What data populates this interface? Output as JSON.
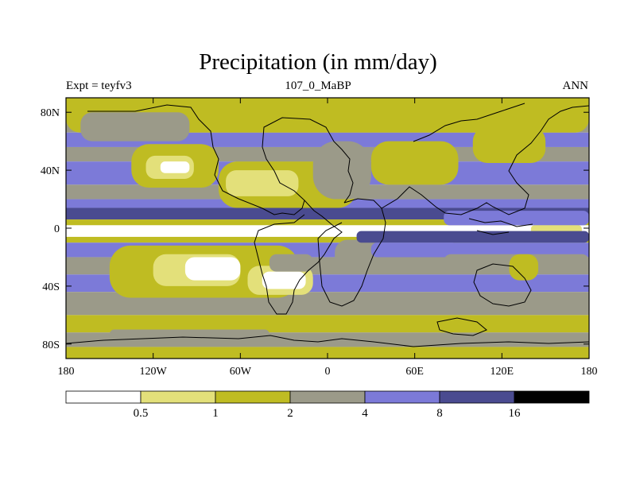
{
  "chart_data": {
    "type": "heatmap",
    "title": "Precipitation (in mm/day)",
    "subtitle_left": "Expt = teyfv3",
    "subtitle_center": "107_0_MaBP",
    "subtitle_right": "ANN",
    "x_ticks": [
      "180",
      "120W",
      "60W",
      "0",
      "60E",
      "120E",
      "180"
    ],
    "x_tick_values": [
      -180,
      -120,
      -60,
      0,
      60,
      120,
      180
    ],
    "y_ticks": [
      "80N",
      "40N",
      "0",
      "40S",
      "80S"
    ],
    "y_tick_values": [
      80,
      40,
      0,
      -40,
      -80
    ],
    "xlim": [
      -180,
      180
    ],
    "ylim": [
      -90,
      90
    ],
    "colorbar": {
      "labels": [
        "0.5",
        "1",
        "2",
        "4",
        "8",
        "16"
      ],
      "levels": [
        0.5,
        1,
        2,
        4,
        8,
        16
      ],
      "colors": [
        "#ffffff",
        "#e3e07a",
        "#bfbc22",
        "#9b9a89",
        "#7c7ad8",
        "#4a4b90",
        "#000000"
      ]
    },
    "zonal_bands": [
      {
        "lat": [
          78,
          90
        ],
        "category": 2
      },
      {
        "lat": [
          66,
          78
        ],
        "category": 3
      },
      {
        "lat": [
          56,
          66
        ],
        "category": 4
      },
      {
        "lat": [
          46,
          56
        ],
        "category": 3
      },
      {
        "lat": [
          30,
          46
        ],
        "category": 4
      },
      {
        "lat": [
          20,
          30
        ],
        "category": 3
      },
      {
        "lat": [
          14,
          20
        ],
        "category": 4
      },
      {
        "lat": [
          6,
          14
        ],
        "category": 5
      },
      {
        "lat": [
          2,
          6
        ],
        "category": 2
      },
      {
        "lat": [
          -6,
          2
        ],
        "category": 0
      },
      {
        "lat": [
          -10,
          -6
        ],
        "category": 2
      },
      {
        "lat": [
          -20,
          -10
        ],
        "category": 4
      },
      {
        "lat": [
          -32,
          -20
        ],
        "category": 3
      },
      {
        "lat": [
          -44,
          -32
        ],
        "category": 4
      },
      {
        "lat": [
          -60,
          -44
        ],
        "category": 3
      },
      {
        "lat": [
          -72,
          -60
        ],
        "category": 2
      },
      {
        "lat": [
          -82,
          -72
        ],
        "category": 3
      },
      {
        "lat": [
          -90,
          -82
        ],
        "category": 2
      }
    ],
    "regions": [
      {
        "lon": [
          -180,
          180
        ],
        "lat": [
          66,
          90
        ],
        "category": 2
      },
      {
        "lon": [
          -170,
          -95
        ],
        "lat": [
          60,
          80
        ],
        "category": 3
      },
      {
        "lon": [
          -135,
          -75
        ],
        "lat": [
          28,
          58
        ],
        "category": 2
      },
      {
        "lon": [
          -125,
          -92
        ],
        "lat": [
          34,
          50
        ],
        "category": 1
      },
      {
        "lon": [
          -115,
          -95
        ],
        "lat": [
          38,
          46
        ],
        "category": 0
      },
      {
        "lon": [
          -75,
          20
        ],
        "lat": [
          14,
          46
        ],
        "category": 2
      },
      {
        "lon": [
          -70,
          -20
        ],
        "lat": [
          22,
          40
        ],
        "category": 1
      },
      {
        "lon": [
          -10,
          30
        ],
        "lat": [
          20,
          60
        ],
        "category": 3
      },
      {
        "lon": [
          30,
          90
        ],
        "lat": [
          30,
          60
        ],
        "category": 2
      },
      {
        "lon": [
          100,
          150
        ],
        "lat": [
          45,
          70
        ],
        "category": 2
      },
      {
        "lon": [
          80,
          180
        ],
        "lat": [
          2,
          12
        ],
        "category": 4
      },
      {
        "lon": [
          140,
          175
        ],
        "lat": [
          -4,
          2
        ],
        "category": 1
      },
      {
        "lon": [
          -150,
          -20
        ],
        "lat": [
          -48,
          -12
        ],
        "category": 2
      },
      {
        "lon": [
          -120,
          -60
        ],
        "lat": [
          -40,
          -18
        ],
        "category": 1
      },
      {
        "lon": [
          -98,
          -60
        ],
        "lat": [
          -36,
          -20
        ],
        "category": 0
      },
      {
        "lon": [
          -55,
          -10
        ],
        "lat": [
          -46,
          -26
        ],
        "category": 1
      },
      {
        "lon": [
          -45,
          -15
        ],
        "lat": [
          -42,
          -30
        ],
        "category": 0
      },
      {
        "lon": [
          -40,
          -10
        ],
        "lat": [
          -30,
          -18
        ],
        "category": 3
      },
      {
        "lon": [
          5,
          40
        ],
        "lat": [
          -30,
          -8
        ],
        "category": 3
      },
      {
        "lon": [
          20,
          180
        ],
        "lat": [
          -10,
          -2
        ],
        "category": 5
      },
      {
        "lon": [
          30,
          90
        ],
        "lat": [
          -20,
          -10
        ],
        "category": 4
      },
      {
        "lon": [
          80,
          180
        ],
        "lat": [
          -30,
          -18
        ],
        "category": 3
      },
      {
        "lon": [
          125,
          145
        ],
        "lat": [
          -36,
          -18
        ],
        "category": 2
      },
      {
        "lon": [
          75,
          110
        ],
        "lat": [
          -72,
          -62
        ],
        "category": 2
      },
      {
        "lon": [
          -150,
          -40
        ],
        "lat": [
          -78,
          -70
        ],
        "category": 3
      }
    ]
  }
}
